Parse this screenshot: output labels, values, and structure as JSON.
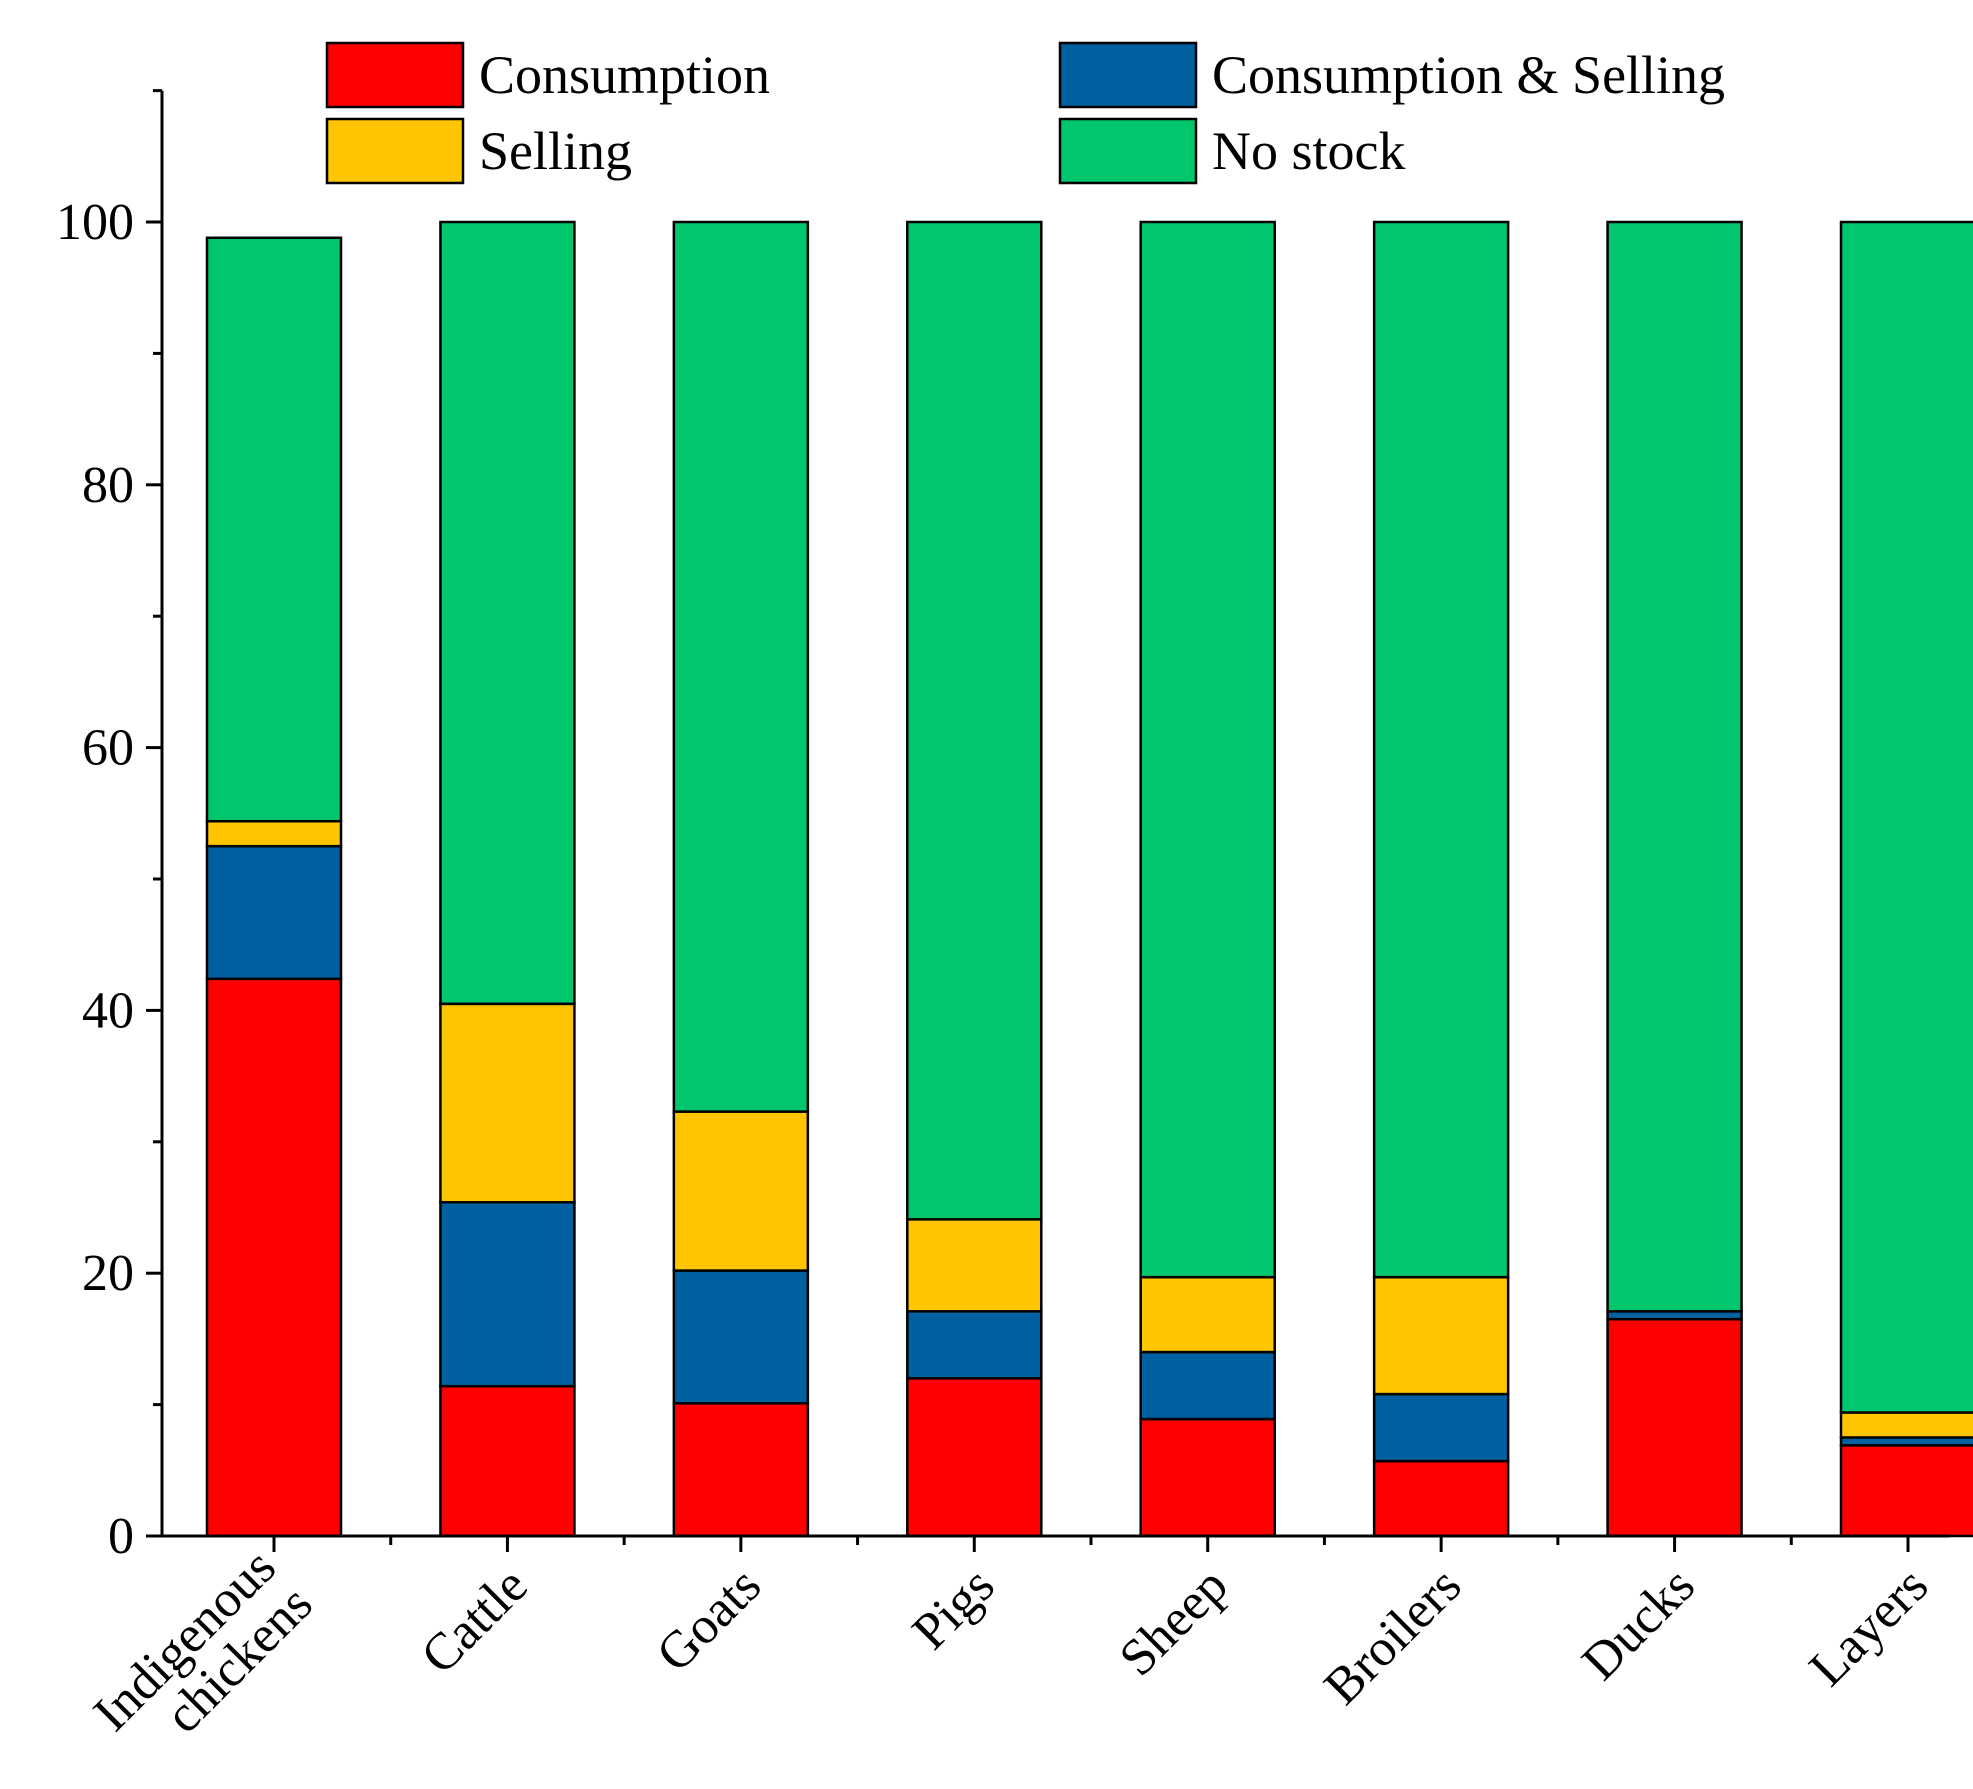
{
  "chart_data": {
    "type": "bar",
    "stacked": true,
    "title": "",
    "xlabel": "",
    "ylabel": "",
    "ylim": [
      0,
      110
    ],
    "yticks": [
      0,
      20,
      40,
      60,
      80,
      100
    ],
    "categories": [
      "Indigenous chickens",
      "Cattle",
      "Goats",
      "Pigs",
      "Sheep",
      "Broilers",
      "Ducks",
      "Layers"
    ],
    "category_lines": [
      [
        "Indigenous",
        "chickens"
      ],
      [
        "Cattle"
      ],
      [
        "Goats"
      ],
      [
        "Pigs"
      ],
      [
        "Sheep"
      ],
      [
        "Broilers"
      ],
      [
        "Ducks"
      ],
      [
        "Layers"
      ]
    ],
    "series": [
      {
        "name": "Consumption",
        "color": "#ff0000",
        "values": [
          42.4,
          11.4,
          10.1,
          12.0,
          8.9,
          5.7,
          16.5,
          6.9
        ]
      },
      {
        "name": "Consumption & Selling",
        "color": "#0060a0",
        "values": [
          10.1,
          14.0,
          10.1,
          5.1,
          5.1,
          5.1,
          0.6,
          0.6
        ]
      },
      {
        "name": "Selling",
        "color": "#ffc500",
        "values": [
          1.9,
          15.1,
          12.1,
          7.0,
          5.7,
          8.9,
          0.0,
          1.9
        ]
      },
      {
        "name": "No stock",
        "color": "#00c66e",
        "values": [
          44.4,
          59.5,
          67.7,
          75.9,
          80.3,
          80.3,
          82.9,
          90.6
        ]
      }
    ],
    "legend": {
      "position": "top",
      "entries": [
        {
          "label": "Consumption",
          "color": "#ff0000"
        },
        {
          "label": "Consumption & Selling",
          "color": "#0060a0"
        },
        {
          "label": "Selling",
          "color": "#ffc500"
        },
        {
          "label": "No stock",
          "color": "#00c66e"
        }
      ]
    },
    "grid": false
  }
}
